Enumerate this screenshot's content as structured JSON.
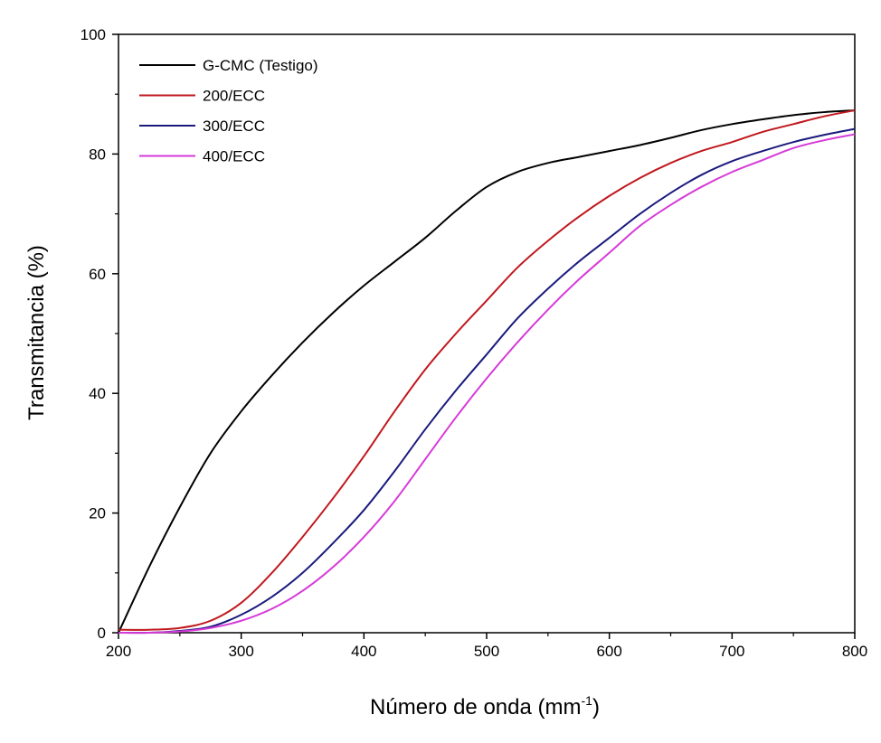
{
  "chart_data": {
    "type": "line",
    "title": "",
    "xlabel": "Número de onda (mm",
    "xlabel_sup": "-1",
    "xlabel_suffix": ")",
    "ylabel": "Transmitancia (%)",
    "xlim": [
      200,
      800
    ],
    "ylim": [
      0,
      100
    ],
    "x_ticks": [
      200,
      300,
      400,
      500,
      600,
      700,
      800
    ],
    "y_ticks": [
      0,
      20,
      40,
      60,
      80,
      100
    ],
    "grid": false,
    "legend_position": "top-left",
    "series": [
      {
        "name": "G-CMC (Testigo)",
        "color": "#000000",
        "x": [
          200,
          225,
          250,
          275,
          300,
          325,
          350,
          375,
          400,
          425,
          450,
          475,
          500,
          525,
          550,
          575,
          600,
          625,
          650,
          675,
          700,
          725,
          750,
          775,
          800
        ],
        "y": [
          0,
          11,
          21,
          30,
          37,
          43,
          48.5,
          53.5,
          58,
          62,
          66,
          70.5,
          74.5,
          77,
          78.5,
          79.5,
          80.5,
          81.5,
          82.7,
          84,
          85,
          85.8,
          86.5,
          87,
          87.3
        ]
      },
      {
        "name": "200/ECC",
        "color": "#c0181e",
        "x": [
          200,
          225,
          250,
          275,
          300,
          325,
          350,
          375,
          400,
          425,
          450,
          475,
          500,
          525,
          550,
          575,
          600,
          625,
          650,
          675,
          700,
          725,
          750,
          775,
          800
        ],
        "y": [
          0.5,
          0.5,
          0.8,
          2,
          5,
          10,
          16,
          22.5,
          29.5,
          37,
          44,
          50,
          55.5,
          61,
          65.5,
          69.5,
          73,
          76,
          78.5,
          80.5,
          82,
          83.7,
          85,
          86.3,
          87.3
        ]
      },
      {
        "name": "300/ECC",
        "color": "#1a1a7e",
        "x": [
          200,
          225,
          250,
          275,
          300,
          325,
          350,
          375,
          400,
          425,
          450,
          475,
          500,
          525,
          550,
          575,
          600,
          625,
          650,
          675,
          700,
          725,
          750,
          775,
          800
        ],
        "y": [
          0,
          0,
          0.3,
          1,
          3,
          6,
          10,
          15,
          20.5,
          27,
          34,
          40.5,
          46.5,
          52.5,
          57.5,
          62,
          66,
          70,
          73.5,
          76.5,
          78.8,
          80.5,
          82,
          83.2,
          84.2
        ]
      },
      {
        "name": "400/ECC",
        "color": "#d63ad8",
        "x": [
          200,
          225,
          250,
          275,
          300,
          325,
          350,
          375,
          400,
          425,
          450,
          475,
          500,
          525,
          550,
          575,
          600,
          625,
          650,
          675,
          700,
          725,
          750,
          775,
          800
        ],
        "y": [
          0,
          0,
          0.2,
          0.8,
          2,
          4,
          7,
          11,
          16,
          22,
          29,
          36,
          42.5,
          48.5,
          54,
          59,
          63.5,
          68,
          71.5,
          74.5,
          77,
          79,
          81,
          82.3,
          83.3
        ]
      }
    ]
  }
}
